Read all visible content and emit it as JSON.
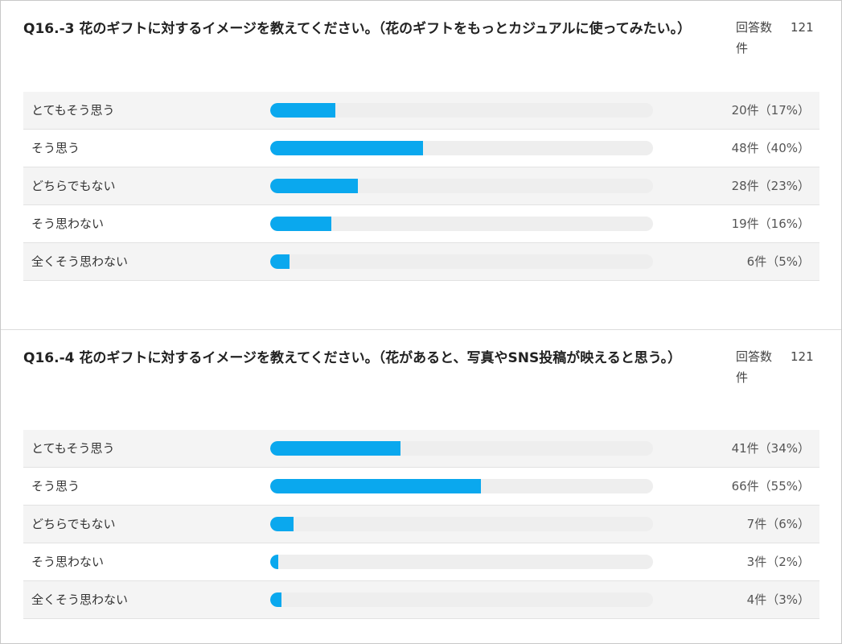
{
  "colors": {
    "bar": "#0aa8ee",
    "track": "#eeeeee"
  },
  "questions": [
    {
      "title": "Q16.-3 花のギフトに対するイメージを教えてください。（花のギフトをもっとカジュアルに使ってみたい。）",
      "response_label": "回答数件",
      "response_count": "121"
    },
    {
      "title": "Q16.-4 花のギフトに対するイメージを教えてください。（花があると、写真やSNS投稿が映えると思う。）",
      "response_label": "回答数件",
      "response_count": "121"
    }
  ],
  "chart_data": [
    {
      "type": "bar",
      "categories": [
        "とてもそう思う",
        "そう思う",
        "どちらでもない",
        "そう思わない",
        "全くそう思わない"
      ],
      "values": [
        17,
        40,
        23,
        16,
        5
      ],
      "counts": [
        20,
        48,
        28,
        19,
        6
      ],
      "value_labels": [
        "20件（17%）",
        "48件（40%）",
        "28件（23%）",
        "19件（16%）",
        "6件（5%）"
      ],
      "xlim": [
        0,
        100
      ]
    },
    {
      "type": "bar",
      "categories": [
        "とてもそう思う",
        "そう思う",
        "どちらでもない",
        "そう思わない",
        "全くそう思わない"
      ],
      "values": [
        34,
        55,
        6,
        2,
        3
      ],
      "counts": [
        41,
        66,
        7,
        3,
        4
      ],
      "value_labels": [
        "41件（34%）",
        "66件（55%）",
        "7件（6%）",
        "3件（2%）",
        "4件（3%）"
      ],
      "xlim": [
        0,
        100
      ]
    }
  ]
}
